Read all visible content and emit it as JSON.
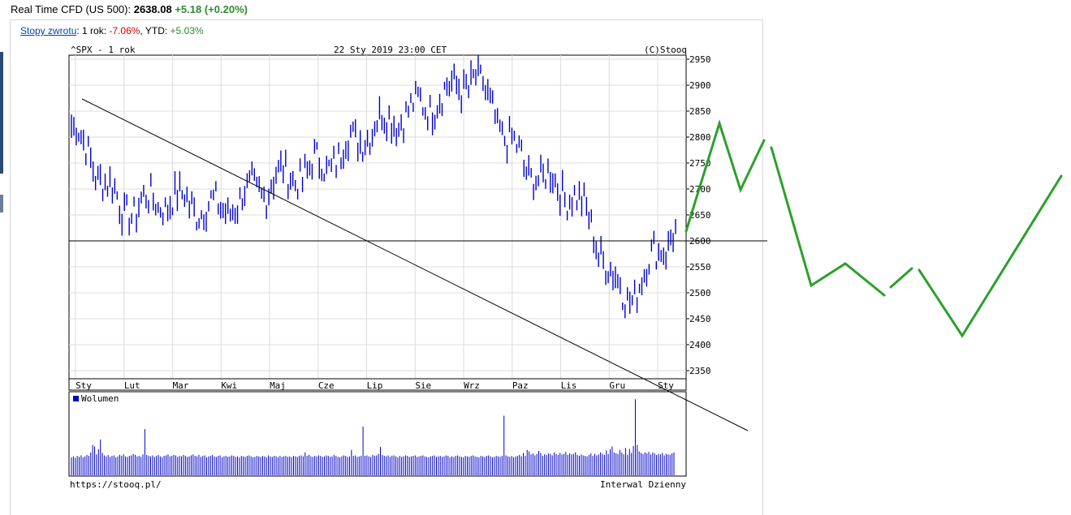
{
  "quote": {
    "label": "Real Time CFD (US 500):",
    "value": "2638.08",
    "change": "+5.18 (+0.20%)"
  },
  "returns": {
    "link_label": "Stopy zwrotu",
    "year_label": ": 1 rok: ",
    "year_value": "-7.06%",
    "ytd_label": ", YTD: ",
    "ytd_value": "+5.03%"
  },
  "chart_header": {
    "symbol": "^SPX - 1 rok",
    "datetime": "22 Sty 2019 23:00 CET",
    "copyright": "(C)Stooq"
  },
  "footer": {
    "url": "https://stooq.pl/",
    "interval": "Interwal Dzienny"
  },
  "colors": {
    "price": "#0000cc",
    "volume": "#0000cc",
    "annotation_green": "#2ca02c",
    "trendline": "#000000",
    "grid": "#dcdcdc"
  },
  "chart_data": [
    {
      "type": "line",
      "title": "^SPX - 1 rok",
      "ylim": [
        2330,
        2960
      ],
      "y_ticks": [
        2950,
        2900,
        2850,
        2800,
        2750,
        2700,
        2650,
        2600,
        2550,
        2500,
        2450,
        2400,
        2350
      ],
      "x_ticks": [
        "Sty",
        "Lut",
        "Mar",
        "Kwi",
        "Maj",
        "Cze",
        "Lip",
        "Sie",
        "Wrz",
        "Paz",
        "Lis",
        "Gru",
        "Sty"
      ],
      "grid": true,
      "series": [
        {
          "x": [
            "2018-01",
            "2018-02",
            "2018-03",
            "2018-04",
            "2018-05",
            "2018-06",
            "2018-07",
            "2018-08",
            "2018-09",
            "2018-10",
            "2018-11",
            "2018-12",
            "2019-01"
          ],
          "values": [
            2822,
            2660,
            2680,
            2660,
            2715,
            2745,
            2820,
            2860,
            2915,
            2740,
            2690,
            2480,
            2630
          ]
        }
      ],
      "horizontal_line": 2600,
      "trendline": [
        [
          2875,
          "2018-01"
        ],
        [
          2322,
          "2019-01"
        ]
      ]
    },
    {
      "type": "bar",
      "title": "",
      "legend": [
        "Wolumen"
      ],
      "series": [
        {
          "name": "Wolumen",
          "values": [
            3.6,
            3.8,
            3.5,
            3.9,
            3.7,
            4.0,
            3.6,
            3.8,
            4.1,
            3.9,
            4.6,
            6.1,
            5.8,
            4.2,
            5.2,
            7.2,
            4.5,
            4.0,
            3.8,
            4.1,
            3.7,
            3.9,
            4.0,
            3.6,
            3.8,
            4.1,
            3.9,
            4.2,
            3.8,
            3.7,
            3.9,
            4.0,
            4.3,
            4.1,
            3.8,
            3.9,
            3.7,
            4.2,
            9.3,
            4.1,
            3.9,
            3.8,
            4.0,
            3.7,
            3.9,
            4.1,
            3.8,
            3.6,
            3.9,
            4.0,
            4.2,
            3.8,
            3.9,
            4.1,
            4.0,
            3.7,
            3.9,
            3.8,
            4.1,
            3.9,
            3.7,
            3.8,
            4.0,
            4.2,
            3.9,
            3.8,
            4.1,
            3.7,
            3.9,
            4.0,
            3.6,
            3.8,
            3.9,
            4.1,
            3.8,
            3.7,
            3.9,
            4.0,
            3.6,
            3.8,
            3.9,
            3.7,
            3.8,
            4.0,
            3.9,
            3.7,
            3.8,
            3.6,
            3.9,
            3.8,
            3.7,
            3.9,
            4.0,
            3.8,
            3.6,
            3.7,
            3.9,
            3.8,
            3.7,
            3.9,
            3.8,
            3.6,
            4.0,
            3.8,
            3.7,
            3.9,
            3.8,
            3.6,
            3.9,
            3.7,
            3.8,
            3.9,
            3.7,
            3.8,
            3.6,
            3.9,
            3.8,
            3.7,
            3.9,
            4.0,
            3.8,
            4.6,
            3.9,
            4.1,
            3.8,
            3.7,
            3.9,
            3.8,
            4.0,
            3.9,
            3.7,
            3.8,
            4.0,
            3.9,
            3.7,
            3.8,
            4.1,
            3.9,
            3.7,
            3.6,
            3.8,
            4.0,
            3.9,
            3.7,
            3.8,
            5.1,
            3.9,
            4.0,
            3.7,
            3.8,
            3.9,
            9.8,
            3.9,
            4.0,
            3.8,
            3.7,
            4.1,
            3.9,
            4.0,
            4.3,
            5.7,
            4.1,
            3.9,
            3.8,
            4.0,
            3.7,
            3.9,
            4.0,
            3.8,
            3.6,
            3.9,
            3.7,
            3.8,
            4.0,
            3.9,
            3.7,
            3.8,
            3.9,
            4.0,
            3.7,
            3.8,
            3.9,
            4.0,
            3.8,
            3.7,
            3.6,
            3.8,
            3.9,
            4.0,
            3.7,
            3.8,
            3.9,
            3.7,
            3.8,
            4.0,
            3.9,
            3.6,
            3.8,
            3.7,
            3.9,
            4.0,
            3.8,
            3.7,
            3.6,
            3.9,
            3.8,
            3.7,
            3.9,
            4.0,
            3.8,
            3.7,
            3.6,
            3.9,
            3.8,
            3.7,
            3.9,
            4.0,
            3.8,
            3.6,
            3.7,
            3.9,
            3.8,
            3.7,
            3.9,
            12.0,
            4.0,
            3.8,
            3.7,
            3.9,
            3.6,
            3.8,
            3.9,
            4.1,
            3.8,
            4.5,
            3.9,
            5.1,
            4.8,
            4.2,
            4.4,
            4.0,
            4.3,
            4.9,
            4.5,
            3.9,
            4.2,
            4.1,
            4.4,
            4.3,
            4.0,
            4.6,
            4.3,
            4.1,
            4.5,
            4.2,
            4.3,
            4.7,
            4.1,
            4.4,
            4.2,
            4.3,
            4.6,
            4.1,
            3.9,
            4.2,
            4.0,
            3.9,
            3.8,
            4.1,
            4.4,
            3.9,
            4.3,
            4.0,
            4.2,
            4.6,
            4.3,
            4.1,
            5.0,
            4.3,
            5.2,
            5.8,
            4.6,
            4.4,
            4.3,
            5.1,
            4.6,
            4.2,
            5.5,
            4.1,
            5.3,
            4.5,
            5.9,
            15.3,
            6.1,
            4.8,
            4.5,
            4.3,
            4.6,
            4.4,
            4.7,
            4.2,
            4.6,
            4.4,
            4.1,
            4.3,
            4.2,
            4.5,
            4.0,
            4.3,
            4.2,
            4.1,
            4.4,
            4.6
          ]
        }
      ]
    }
  ]
}
